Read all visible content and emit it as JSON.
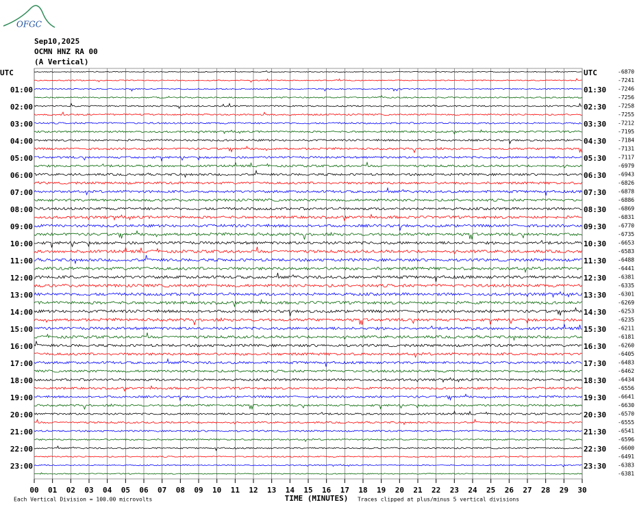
{
  "header": {
    "logo": "OFGC",
    "lines": [
      "Sep10,2025",
      "OCMN HNZ RA 00",
      "(A Vertical)"
    ]
  },
  "left_labels": [
    "UTC",
    "01:00",
    "02:00",
    "03:00",
    "04:00",
    "05:00",
    "06:00",
    "07:00",
    "08:00",
    "09:00",
    "10:00",
    "11:00",
    "12:00",
    "13:00",
    "14:00",
    "15:00",
    "16:00",
    "17:00",
    "18:00",
    "19:00",
    "20:00",
    "21:00",
    "22:00",
    "23:00"
  ],
  "right_labels": [
    "UTC",
    "01:30",
    "02:30",
    "03:30",
    "04:30",
    "05:30",
    "06:30",
    "07:30",
    "08:30",
    "09:30",
    "10:30",
    "11:30",
    "12:30",
    "13:30",
    "14:30",
    "15:30",
    "16:30",
    "17:30",
    "18:30",
    "19:30",
    "20:30",
    "21:30",
    "22:30",
    "23:30"
  ],
  "offsets": [
    "-6870",
    "-7241",
    "-7246",
    "-7256",
    "-7258",
    "-7255",
    "-7212",
    "-7195",
    "-7184",
    "-7131",
    "-7117",
    "-6979",
    "-6943",
    "-6826",
    "-6878",
    "-6886",
    "-6869",
    "-6831",
    "-6770",
    "-6735",
    "-6653",
    "-6583",
    "-6488",
    "-6441",
    "-6381",
    "-6335",
    "-6301",
    "-6269",
    "-6253",
    "-6235",
    "-6211",
    "-6181",
    "-6260",
    "-6405",
    "-6483",
    "-6462",
    "-6434",
    "-6556",
    "-6641",
    "-6630",
    "-6570",
    "-6555",
    "-6541",
    "-6596",
    "-6600",
    "-6491",
    "-6383",
    "-6381"
  ],
  "x_ticks": [
    "00",
    "01",
    "02",
    "03",
    "04",
    "05",
    "06",
    "07",
    "08",
    "09",
    "10",
    "11",
    "12",
    "13",
    "14",
    "15",
    "16",
    "17",
    "18",
    "19",
    "20",
    "21",
    "22",
    "23",
    "24",
    "25",
    "26",
    "27",
    "28",
    "29",
    "30"
  ],
  "x_label": "TIME (MINUTES)",
  "footer": {
    "left": "Each Vertical Division =  100.00 microvolts",
    "right": "Traces clipped at plus/minus 5 vertical divisions"
  },
  "trace_colors": [
    "#000000",
    "#ff0000",
    "#0000ff",
    "#006400"
  ]
}
